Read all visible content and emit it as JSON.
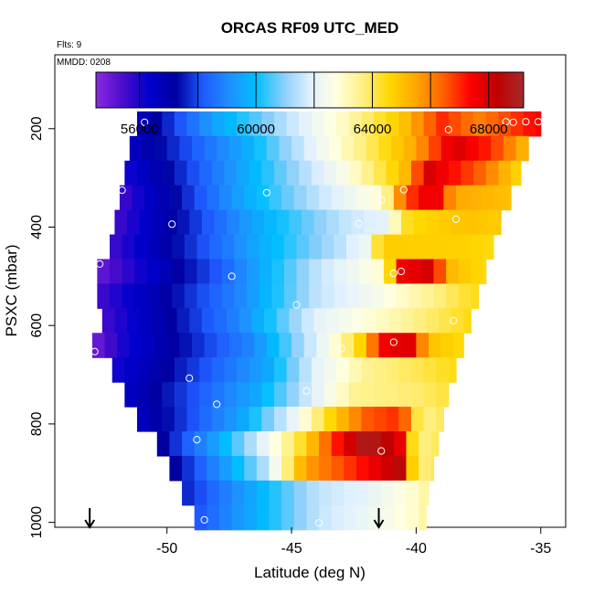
{
  "chart_data": {
    "type": "heatmap",
    "title": "ORCAS RF09 UTC_MED",
    "subtitle": "Flts: 9",
    "annotation": "MMDD: 0208",
    "xlabel": "Latitude (deg N)",
    "ylabel": "PSXC (mbar)",
    "xlim": [
      -54.5,
      -34.0
    ],
    "ylim": [
      1010,
      50
    ],
    "y_reversed": true,
    "x_ticks": [
      -50,
      -45,
      -40,
      -35
    ],
    "x_tick_labels": [
      "-50",
      "-45",
      "-40",
      "-35"
    ],
    "y_ticks": [
      200,
      400,
      600,
      800,
      1000
    ],
    "y_tick_labels": [
      "200",
      "400",
      "600",
      "800",
      "1000"
    ],
    "colorbar": {
      "range": [
        54500,
        69200
      ],
      "ticks": [
        56000,
        60000,
        64000,
        68000
      ],
      "tick_labels": [
        "56000",
        "60000",
        "64000",
        "68000"
      ],
      "separators": [
        56000,
        58000,
        60000,
        62000,
        64000,
        66000,
        68000
      ],
      "colors": [
        "#8a2be2",
        "#4b0ccc",
        "#0000cd",
        "#0000a0",
        "#1e5aff",
        "#1e90ff",
        "#00bfff",
        "#87cefa",
        "#e0f0ff",
        "#ffffe0",
        "#ffef80",
        "#ffd700",
        "#ffa500",
        "#ff6000",
        "#ff0000",
        "#c00000",
        "#a52a2a"
      ]
    },
    "rows": [
      {
        "p": 190,
        "lat_min": -51.2,
        "lat_max": -35.0,
        "knots": [
          [
            -51.2,
            56500
          ],
          [
            -48.0,
            59500
          ],
          [
            -43.0,
            63000
          ],
          [
            -40.5,
            65000
          ],
          [
            -39.0,
            67000
          ],
          [
            -37.5,
            66000
          ],
          [
            -35.0,
            67500
          ]
        ]
      },
      {
        "p": 240,
        "lat_min": -51.5,
        "lat_max": -35.5,
        "knots": [
          [
            -51.5,
            56500
          ],
          [
            -47.0,
            59500
          ],
          [
            -43.0,
            63000
          ],
          [
            -40.0,
            65500
          ],
          [
            -38.5,
            68000
          ],
          [
            -37.0,
            67000
          ],
          [
            -35.5,
            65000
          ]
        ]
      },
      {
        "p": 290,
        "lat_min": -51.7,
        "lat_max": -35.8,
        "knots": [
          [
            -51.7,
            56000
          ],
          [
            -47.0,
            59500
          ],
          [
            -43.0,
            62500
          ],
          [
            -40.5,
            65000
          ],
          [
            -39.5,
            68000
          ],
          [
            -37.5,
            66500
          ],
          [
            -35.8,
            64500
          ]
        ]
      },
      {
        "p": 340,
        "lat_min": -51.9,
        "lat_max": -36.2,
        "knots": [
          [
            -51.9,
            55500
          ],
          [
            -47.0,
            59500
          ],
          [
            -44.0,
            61500
          ],
          [
            -41.3,
            63000
          ],
          [
            -40.5,
            66500
          ],
          [
            -39.3,
            68000
          ],
          [
            -38.5,
            65500
          ],
          [
            -36.2,
            65000
          ]
        ]
      },
      {
        "p": 390,
        "lat_min": -52.1,
        "lat_max": -36.6,
        "knots": [
          [
            -52.1,
            55500
          ],
          [
            -46.5,
            59500
          ],
          [
            -43.0,
            61500
          ],
          [
            -41.3,
            62000
          ],
          [
            -40.3,
            64500
          ],
          [
            -38.0,
            65000
          ],
          [
            -36.6,
            64800
          ]
        ]
      },
      {
        "p": 440,
        "lat_min": -52.3,
        "lat_max": -36.9,
        "knots": [
          [
            -52.3,
            55500
          ],
          [
            -46.5,
            59500
          ],
          [
            -43.0,
            61500
          ],
          [
            -41.7,
            62500
          ],
          [
            -41.5,
            64800
          ],
          [
            -38.0,
            64700
          ],
          [
            -36.9,
            64500
          ]
        ]
      },
      {
        "p": 490,
        "lat_min": -52.8,
        "lat_max": -37.2,
        "knots": [
          [
            -52.8,
            55000
          ],
          [
            -47.5,
            58500
          ],
          [
            -44.0,
            61500
          ],
          [
            -41.3,
            63000
          ],
          [
            -40.6,
            67500
          ],
          [
            -39.5,
            68000
          ],
          [
            -38.5,
            65000
          ],
          [
            -37.2,
            64500
          ]
        ]
      },
      {
        "p": 540,
        "lat_min": -52.8,
        "lat_max": -37.5,
        "knots": [
          [
            -52.8,
            55500
          ],
          [
            -47.0,
            59000
          ],
          [
            -44.0,
            61500
          ],
          [
            -41.5,
            62500
          ],
          [
            -40.5,
            63000
          ],
          [
            -38.5,
            64000
          ],
          [
            -37.5,
            64500
          ]
        ]
      },
      {
        "p": 590,
        "lat_min": -52.6,
        "lat_max": -37.8,
        "knots": [
          [
            -52.6,
            55500
          ],
          [
            -47.0,
            59000
          ],
          [
            -44.0,
            62000
          ],
          [
            -41.5,
            63000
          ],
          [
            -39.5,
            63800
          ],
          [
            -37.8,
            64500
          ]
        ]
      },
      {
        "p": 640,
        "lat_min": -53.0,
        "lat_max": -38.1,
        "knots": [
          [
            -53.0,
            54800
          ],
          [
            -51.8,
            56000
          ],
          [
            -46.5,
            59000
          ],
          [
            -43.5,
            62500
          ],
          [
            -42.3,
            64500
          ],
          [
            -41.3,
            67500
          ],
          [
            -40.3,
            68000
          ],
          [
            -39.5,
            65000
          ],
          [
            -38.1,
            64500
          ]
        ]
      },
      {
        "p": 690,
        "lat_min": -52.2,
        "lat_max": -38.4,
        "knots": [
          [
            -52.2,
            56000
          ],
          [
            -46.0,
            59500
          ],
          [
            -44.0,
            62000
          ],
          [
            -42.0,
            63500
          ],
          [
            -40.0,
            64000
          ],
          [
            -38.4,
            64500
          ]
        ]
      },
      {
        "p": 740,
        "lat_min": -51.7,
        "lat_max": -38.7,
        "knots": [
          [
            -51.7,
            56500
          ],
          [
            -46.5,
            59500
          ],
          [
            -44.5,
            61500
          ],
          [
            -42.5,
            63500
          ],
          [
            -40.0,
            63800
          ],
          [
            -38.7,
            64200
          ]
        ]
      },
      {
        "p": 790,
        "lat_min": -51.2,
        "lat_max": -38.9,
        "knots": [
          [
            -51.2,
            56500
          ],
          [
            -47.0,
            59500
          ],
          [
            -45.0,
            62000
          ],
          [
            -43.5,
            64500
          ],
          [
            -42.0,
            66500
          ],
          [
            -40.6,
            67000
          ],
          [
            -39.8,
            63500
          ],
          [
            -38.9,
            64000
          ]
        ]
      },
      {
        "p": 840,
        "lat_min": -50.4,
        "lat_max": -39.1,
        "knots": [
          [
            -50.4,
            57000
          ],
          [
            -48.0,
            59500
          ],
          [
            -46.5,
            61500
          ],
          [
            -44.5,
            64500
          ],
          [
            -43.0,
            67500
          ],
          [
            -42.0,
            69000
          ],
          [
            -40.7,
            68000
          ],
          [
            -40.0,
            63500
          ],
          [
            -39.1,
            64000
          ]
        ]
      },
      {
        "p": 890,
        "lat_min": -49.9,
        "lat_max": -39.3,
        "knots": [
          [
            -49.9,
            57000
          ],
          [
            -47.5,
            59500
          ],
          [
            -46.0,
            61500
          ],
          [
            -44.5,
            65500
          ],
          [
            -42.5,
            67000
          ],
          [
            -40.6,
            68500
          ],
          [
            -40.0,
            63500
          ],
          [
            -39.3,
            64000
          ]
        ]
      },
      {
        "p": 940,
        "lat_min": -49.4,
        "lat_max": -39.5,
        "knots": [
          [
            -49.4,
            57500
          ],
          [
            -46.0,
            60000
          ],
          [
            -44.0,
            61500
          ],
          [
            -42.0,
            62000
          ],
          [
            -40.0,
            63000
          ],
          [
            -39.5,
            63500
          ]
        ]
      },
      {
        "p": 990,
        "lat_min": -48.9,
        "lat_max": -39.6,
        "knots": [
          [
            -48.9,
            58000
          ],
          [
            -46.0,
            60000
          ],
          [
            -44.0,
            61500
          ],
          [
            -42.0,
            62200
          ],
          [
            -40.0,
            63000
          ],
          [
            -39.6,
            63500
          ]
        ]
      }
    ],
    "row_height_mbar": 50,
    "markers": [
      {
        "lat": -50.9,
        "p": 187
      },
      {
        "lat": -38.7,
        "p": 202
      },
      {
        "lat": -36.4,
        "p": 186
      },
      {
        "lat": -36.1,
        "p": 187
      },
      {
        "lat": -35.6,
        "p": 186
      },
      {
        "lat": -35.1,
        "p": 186
      },
      {
        "lat": -51.8,
        "p": 325
      },
      {
        "lat": -46.0,
        "p": 330
      },
      {
        "lat": -40.5,
        "p": 324
      },
      {
        "lat": -41.4,
        "p": 345
      },
      {
        "lat": -49.8,
        "p": 394
      },
      {
        "lat": -42.3,
        "p": 393
      },
      {
        "lat": -38.4,
        "p": 384
      },
      {
        "lat": -52.7,
        "p": 475
      },
      {
        "lat": -47.4,
        "p": 500
      },
      {
        "lat": -40.6,
        "p": 490
      },
      {
        "lat": -40.9,
        "p": 494
      },
      {
        "lat": -44.8,
        "p": 558
      },
      {
        "lat": -38.5,
        "p": 590
      },
      {
        "lat": -52.9,
        "p": 653
      },
      {
        "lat": -43.0,
        "p": 647
      },
      {
        "lat": -40.9,
        "p": 634
      },
      {
        "lat": -49.1,
        "p": 707
      },
      {
        "lat": -44.4,
        "p": 733
      },
      {
        "lat": -48.0,
        "p": 760
      },
      {
        "lat": -48.8,
        "p": 832
      },
      {
        "lat": -41.4,
        "p": 855
      },
      {
        "lat": -48.5,
        "p": 995
      },
      {
        "lat": -43.9,
        "p": 1001
      }
    ],
    "arrows": [
      {
        "lat": -53.1
      },
      {
        "lat": -41.5
      }
    ]
  }
}
